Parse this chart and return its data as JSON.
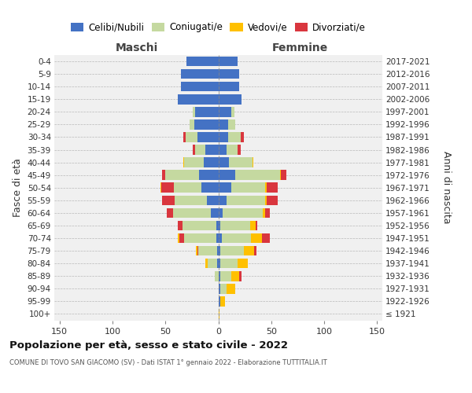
{
  "age_groups": [
    "100+",
    "95-99",
    "90-94",
    "85-89",
    "80-84",
    "75-79",
    "70-74",
    "65-69",
    "60-64",
    "55-59",
    "50-54",
    "45-49",
    "40-44",
    "35-39",
    "30-34",
    "25-29",
    "20-24",
    "15-19",
    "10-14",
    "5-9",
    "0-4"
  ],
  "birth_years": [
    "≤ 1921",
    "1922-1926",
    "1927-1931",
    "1932-1936",
    "1937-1941",
    "1942-1946",
    "1947-1951",
    "1952-1956",
    "1957-1961",
    "1962-1966",
    "1967-1971",
    "1972-1976",
    "1977-1981",
    "1982-1986",
    "1987-1991",
    "1992-1996",
    "1997-2001",
    "2002-2006",
    "2007-2011",
    "2012-2016",
    "2017-2021"
  ],
  "male_celibe": [
    0,
    0,
    0,
    0,
    1,
    1,
    2,
    2,
    7,
    11,
    16,
    18,
    14,
    12,
    20,
    23,
    22,
    38,
    35,
    35,
    30
  ],
  "male_coniugato": [
    0,
    0,
    0,
    3,
    9,
    18,
    30,
    32,
    36,
    30,
    26,
    32,
    18,
    10,
    11,
    4,
    2,
    0,
    0,
    0,
    0
  ],
  "male_vedovo": [
    0,
    0,
    0,
    0,
    2,
    1,
    1,
    0,
    0,
    0,
    1,
    0,
    1,
    0,
    0,
    0,
    0,
    0,
    0,
    0,
    0
  ],
  "male_divorziato": [
    0,
    0,
    0,
    0,
    0,
    1,
    5,
    4,
    6,
    12,
    12,
    3,
    0,
    2,
    2,
    0,
    0,
    0,
    0,
    0,
    0
  ],
  "female_nubile": [
    0,
    2,
    2,
    2,
    2,
    2,
    3,
    2,
    4,
    8,
    12,
    16,
    10,
    8,
    9,
    9,
    12,
    22,
    20,
    20,
    18
  ],
  "female_coniugata": [
    0,
    0,
    6,
    10,
    16,
    22,
    28,
    28,
    38,
    36,
    32,
    42,
    22,
    10,
    12,
    7,
    3,
    0,
    0,
    0,
    0
  ],
  "female_vedova": [
    1,
    4,
    8,
    8,
    10,
    10,
    10,
    5,
    2,
    2,
    2,
    1,
    1,
    0,
    0,
    0,
    0,
    0,
    0,
    0,
    0
  ],
  "female_divorziata": [
    0,
    0,
    0,
    2,
    0,
    2,
    8,
    2,
    5,
    10,
    10,
    5,
    0,
    3,
    3,
    0,
    0,
    0,
    0,
    0,
    0
  ],
  "col_celibe": "#4472C4",
  "col_coniugato": "#c5d9a0",
  "col_vedovo": "#ffc000",
  "col_divorziato": "#d9363e",
  "xlim": 155,
  "title": "Popolazione per età, sesso e stato civile - 2022",
  "subtitle": "COMUNE DI TOVO SAN GIACOMO (SV) - Dati ISTAT 1° gennaio 2022 - Elaborazione TUTTITALIA.IT",
  "ylabel_left": "Fasce di età",
  "ylabel_right": "Anni di nascita",
  "header_left": "Maschi",
  "header_right": "Femmine",
  "legend_labels": [
    "Celibi/Nubili",
    "Coniugati/e",
    "Vedovi/e",
    "Divorziati/e"
  ],
  "bg_color": "#f0f0f0"
}
